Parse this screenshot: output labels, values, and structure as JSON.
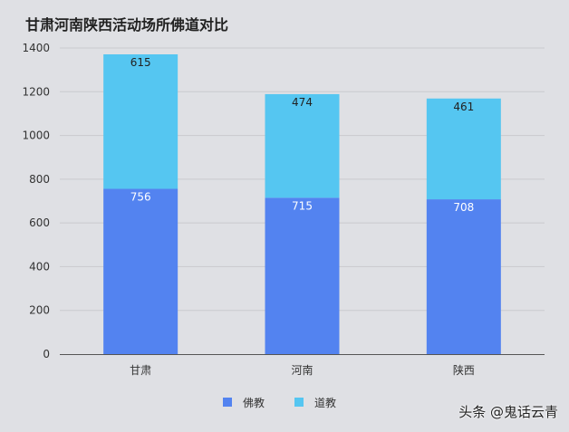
{
  "chart_data": {
    "type": "bar",
    "stacked": true,
    "title": "甘肃河南陕西活动场所佛道对比",
    "categories": [
      "甘肃",
      "河南",
      "陕西"
    ],
    "series": [
      {
        "name": "佛教",
        "values": [
          756,
          715,
          708
        ],
        "color": "#5383f0"
      },
      {
        "name": "道教",
        "values": [
          615,
          474,
          461
        ],
        "color": "#55c6f1"
      }
    ],
    "ylim": [
      0,
      1400
    ],
    "yticks": [
      0,
      200,
      400,
      600,
      800,
      1000,
      1200,
      1400
    ],
    "grid": true,
    "legend": "bottom",
    "xlabel": "",
    "ylabel": ""
  },
  "watermark": "头条 @鬼话云青"
}
